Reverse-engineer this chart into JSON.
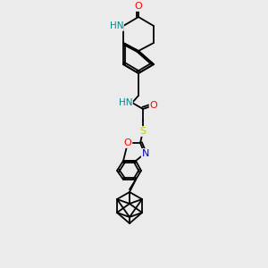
{
  "background_color": "#ebebeb",
  "figsize": [
    3.0,
    3.0
  ],
  "dpi": 100,
  "bond_lw": 1.3,
  "atom_colors": {
    "O": "#ff0000",
    "N": "#0000cc",
    "S": "#cccc00",
    "NH": "#008b8b"
  }
}
